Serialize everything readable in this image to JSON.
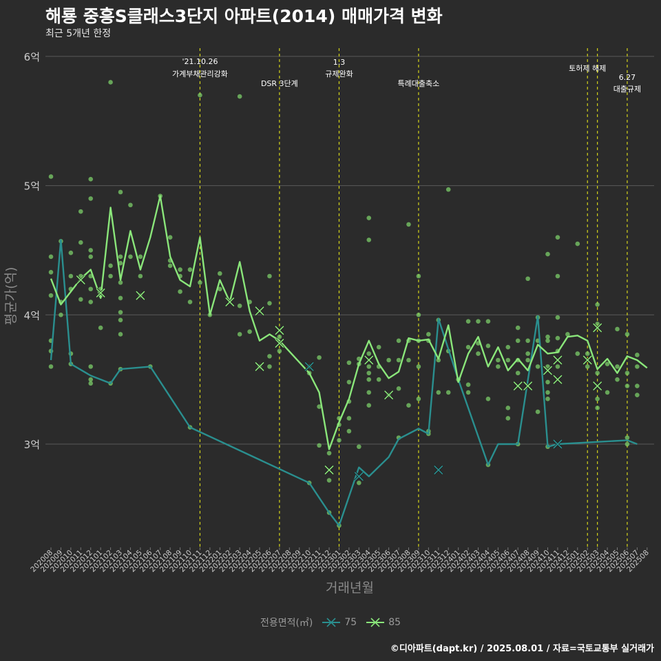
{
  "header": {
    "title": "해룡 중흥S클래스3단지 아파트(2014) 매매가격 변화",
    "subtitle": "최근 5개년 한정"
  },
  "footer": {
    "credit": "©디아파트(dapt.kr) / 2025.08.01 / 자료=국토교통부 실거래가"
  },
  "legend": {
    "title": "전용면적(㎡)",
    "items": [
      {
        "label": "75",
        "color": "#2a8f8f"
      },
      {
        "label": "85",
        "color": "#8ae67a"
      }
    ]
  },
  "colors": {
    "background": "#2b2b2b",
    "grid": "#5a5a5a",
    "event_line": "#d4d41a",
    "series_75": "#2a8f8f",
    "series_85": "#8ae67a",
    "points": "#7ccf6a",
    "axis_text": "#cccccc"
  },
  "chart_data": {
    "type": "line",
    "xlabel": "거래년월",
    "ylabel": "평균가(억)",
    "ylim": [
      2.25,
      6.1
    ],
    "yticks": [
      3,
      4,
      5,
      6
    ],
    "ytick_labels": [
      "3억",
      "4억",
      "5억",
      "6억"
    ],
    "grid": true,
    "legend_position": "bottom",
    "months": [
      "202008",
      "202009",
      "202010",
      "202011",
      "202012",
      "202101",
      "202102",
      "202103",
      "202104",
      "202105",
      "202106",
      "202107",
      "202108",
      "202109",
      "202110",
      "202111",
      "202112",
      "202201",
      "202202",
      "202203",
      "202204",
      "202205",
      "202206",
      "202207",
      "202208",
      "202209",
      "202210",
      "202211",
      "202212",
      "202301",
      "202302",
      "202303",
      "202304",
      "202305",
      "202306",
      "202307",
      "202308",
      "202309",
      "202310",
      "202311",
      "202312",
      "202401",
      "202402",
      "202403",
      "202404",
      "202405",
      "202406",
      "202407",
      "202408",
      "202409",
      "202410",
      "202411",
      "202412",
      "202501",
      "202502",
      "202503",
      "202504",
      "202505",
      "202506",
      "202507",
      "202508"
    ],
    "events": [
      {
        "month": "202111",
        "label": "'21.10.26\n가계부채관리강화"
      },
      {
        "month": "202207",
        "label": "DSR 3단계"
      },
      {
        "month": "202301",
        "label": "1.3\n규제완화"
      },
      {
        "month": "202309",
        "label": "특례대출축소"
      },
      {
        "month": "202502",
        "label": "토허제 해제"
      },
      {
        "month": "202503",
        "label": ""
      },
      {
        "month": "202506",
        "label": "6.27\n대출규제"
      }
    ],
    "series": [
      {
        "name": "75",
        "points": [
          [
            "202008",
            3.65
          ],
          [
            "202009",
            4.58
          ],
          [
            "202010",
            3.62
          ],
          [
            "202012",
            3.53
          ],
          [
            "202102",
            3.47
          ],
          [
            "202103",
            3.58
          ],
          [
            "202106",
            3.6
          ],
          [
            "202110",
            3.13
          ],
          [
            "202210",
            2.7
          ],
          [
            "202212",
            2.47
          ],
          [
            "202301",
            2.37
          ],
          [
            "202303",
            2.82
          ],
          [
            "202304",
            2.75
          ],
          [
            "202306",
            2.9
          ],
          [
            "202307",
            3.04
          ],
          [
            "202309",
            3.12
          ],
          [
            "202310",
            3.08
          ],
          [
            "202311",
            3.97
          ],
          [
            "202401",
            3.5
          ],
          [
            "202404",
            2.84
          ],
          [
            "202405",
            3.0
          ],
          [
            "202407",
            3.0
          ],
          [
            "202409",
            3.99
          ],
          [
            "202410",
            2.98
          ],
          [
            "202411",
            3.0
          ],
          [
            "202506",
            3.03
          ],
          [
            "202507",
            3.0
          ]
        ]
      },
      {
        "name": "85",
        "points": [
          [
            "202008",
            4.28
          ],
          [
            "202009",
            4.08
          ],
          [
            "202010",
            4.18
          ],
          [
            "202011",
            4.28
          ],
          [
            "202012",
            4.35
          ],
          [
            "202101",
            4.13
          ],
          [
            "202102",
            4.83
          ],
          [
            "202103",
            4.27
          ],
          [
            "202104",
            4.65
          ],
          [
            "202105",
            4.35
          ],
          [
            "202106",
            4.6
          ],
          [
            "202107",
            4.92
          ],
          [
            "202108",
            4.45
          ],
          [
            "202109",
            4.27
          ],
          [
            "202110",
            4.22
          ],
          [
            "202111",
            4.6
          ],
          [
            "202112",
            4.0
          ],
          [
            "202201",
            4.27
          ],
          [
            "202202",
            4.1
          ],
          [
            "202203",
            4.41
          ],
          [
            "202204",
            4.03
          ],
          [
            "202205",
            3.8
          ],
          [
            "202206",
            3.85
          ],
          [
            "202207",
            3.8
          ],
          [
            "202210",
            3.55
          ],
          [
            "202211",
            3.4
          ],
          [
            "202212",
            2.96
          ],
          [
            "202301",
            3.17
          ],
          [
            "202302",
            3.35
          ],
          [
            "202303",
            3.62
          ],
          [
            "202304",
            3.8
          ],
          [
            "202305",
            3.62
          ],
          [
            "202306",
            3.51
          ],
          [
            "202307",
            3.56
          ],
          [
            "202308",
            3.82
          ],
          [
            "202309",
            3.8
          ],
          [
            "202310",
            3.81
          ],
          [
            "202311",
            3.66
          ],
          [
            "202312",
            3.92
          ],
          [
            "202401",
            3.48
          ],
          [
            "202402",
            3.7
          ],
          [
            "202403",
            3.83
          ],
          [
            "202404",
            3.6
          ],
          [
            "202405",
            3.75
          ],
          [
            "202406",
            3.57
          ],
          [
            "202407",
            3.66
          ],
          [
            "202408",
            3.57
          ],
          [
            "202409",
            3.77
          ],
          [
            "202410",
            3.7
          ],
          [
            "202411",
            3.71
          ],
          [
            "202412",
            3.83
          ],
          [
            "202501",
            3.84
          ],
          [
            "202502",
            3.8
          ],
          [
            "202503",
            3.58
          ],
          [
            "202504",
            3.66
          ],
          [
            "202505",
            3.55
          ],
          [
            "202506",
            3.68
          ],
          [
            "202507",
            3.65
          ],
          [
            "202508",
            3.59
          ]
        ]
      }
    ],
    "transactions": [
      [
        "202008",
        5.07
      ],
      [
        "202008",
        4.45
      ],
      [
        "202008",
        4.33
      ],
      [
        "202008",
        4.15
      ],
      [
        "202008",
        3.8
      ],
      [
        "202008",
        3.72
      ],
      [
        "202008",
        3.6
      ],
      [
        "202009",
        4.57
      ],
      [
        "202009",
        4.1
      ],
      [
        "202009",
        4.0
      ],
      [
        "202010",
        4.48
      ],
      [
        "202010",
        4.3
      ],
      [
        "202010",
        4.2
      ],
      [
        "202010",
        3.7
      ],
      [
        "202010",
        3.62
      ],
      [
        "202011",
        4.8
      ],
      [
        "202011",
        4.56
      ],
      [
        "202011",
        4.3
      ],
      [
        "202011",
        4.12
      ],
      [
        "202012",
        5.05
      ],
      [
        "202012",
        4.9
      ],
      [
        "202012",
        4.5
      ],
      [
        "202012",
        4.45
      ],
      [
        "202012",
        4.3
      ],
      [
        "202012",
        4.2
      ],
      [
        "202012",
        4.1
      ],
      [
        "202012",
        3.6
      ],
      [
        "202012",
        3.5
      ],
      [
        "202012",
        3.47
      ],
      [
        "202101",
        4.2
      ],
      [
        "202101",
        4.15
      ],
      [
        "202101",
        3.9
      ],
      [
        "202102",
        5.8
      ],
      [
        "202102",
        4.38
      ],
      [
        "202102",
        4.3
      ],
      [
        "202102",
        3.47
      ],
      [
        "202103",
        4.95
      ],
      [
        "202103",
        4.45
      ],
      [
        "202103",
        4.4
      ],
      [
        "202103",
        4.25
      ],
      [
        "202103",
        4.13
      ],
      [
        "202103",
        4.02
      ],
      [
        "202103",
        3.96
      ],
      [
        "202103",
        3.85
      ],
      [
        "202103",
        3.58
      ],
      [
        "202104",
        4.85
      ],
      [
        "202104",
        4.45
      ],
      [
        "202105",
        4.45
      ],
      [
        "202105",
        4.3
      ],
      [
        "202105",
        4.15
      ],
      [
        "202106",
        3.6
      ],
      [
        "202107",
        4.92
      ],
      [
        "202108",
        4.6
      ],
      [
        "202108",
        4.42
      ],
      [
        "202108",
        4.38
      ],
      [
        "202109",
        4.35
      ],
      [
        "202109",
        4.3
      ],
      [
        "202109",
        4.18
      ],
      [
        "202110",
        4.35
      ],
      [
        "202110",
        4.1
      ],
      [
        "202110",
        3.13
      ],
      [
        "202111",
        5.7
      ],
      [
        "202111",
        4.25
      ],
      [
        "202112",
        4.0
      ],
      [
        "202201",
        4.32
      ],
      [
        "202201",
        4.2
      ],
      [
        "202203",
        5.69
      ],
      [
        "202203",
        4.07
      ],
      [
        "202203",
        3.85
      ],
      [
        "202204",
        4.1
      ],
      [
        "202204",
        3.87
      ],
      [
        "202205",
        3.6
      ],
      [
        "202206",
        4.3
      ],
      [
        "202206",
        4.09
      ],
      [
        "202206",
        3.68
      ],
      [
        "202206",
        3.6
      ],
      [
        "202207",
        3.83
      ],
      [
        "202207",
        3.72
      ],
      [
        "202210",
        3.6
      ],
      [
        "202210",
        3.55
      ],
      [
        "202210",
        2.7
      ],
      [
        "202211",
        3.67
      ],
      [
        "202211",
        3.29
      ],
      [
        "202211",
        2.99
      ],
      [
        "202212",
        2.93
      ],
      [
        "202212",
        2.72
      ],
      [
        "202212",
        2.47
      ],
      [
        "202301",
        3.2
      ],
      [
        "202301",
        3.15
      ],
      [
        "202301",
        3.03
      ],
      [
        "202301",
        2.37
      ],
      [
        "202302",
        3.63
      ],
      [
        "202302",
        3.48
      ],
      [
        "202302",
        3.33
      ],
      [
        "202302",
        3.2
      ],
      [
        "202302",
        3.1
      ],
      [
        "202303",
        3.66
      ],
      [
        "202303",
        3.62
      ],
      [
        "202303",
        2.98
      ],
      [
        "202303",
        2.7
      ],
      [
        "202304",
        4.75
      ],
      [
        "202304",
        4.58
      ],
      [
        "202304",
        3.7
      ],
      [
        "202304",
        3.6
      ],
      [
        "202304",
        3.55
      ],
      [
        "202304",
        3.5
      ],
      [
        "202304",
        3.4
      ],
      [
        "202304",
        3.3
      ],
      [
        "202305",
        3.75
      ],
      [
        "202305",
        3.6
      ],
      [
        "202305",
        3.5
      ],
      [
        "202306",
        3.65
      ],
      [
        "202306",
        3.38
      ],
      [
        "202307",
        3.8
      ],
      [
        "202307",
        3.65
      ],
      [
        "202307",
        3.43
      ],
      [
        "202307",
        3.05
      ],
      [
        "202308",
        4.7
      ],
      [
        "202308",
        3.8
      ],
      [
        "202308",
        3.65
      ],
      [
        "202308",
        3.3
      ],
      [
        "202309",
        4.3
      ],
      [
        "202309",
        4.0
      ],
      [
        "202309",
        3.8
      ],
      [
        "202309",
        3.6
      ],
      [
        "202309",
        3.35
      ],
      [
        "202310",
        3.85
      ],
      [
        "202310",
        3.8
      ],
      [
        "202310",
        3.1
      ],
      [
        "202310",
        3.08
      ],
      [
        "202311",
        3.96
      ],
      [
        "202311",
        3.65
      ],
      [
        "202311",
        3.4
      ],
      [
        "202312",
        4.97
      ],
      [
        "202312",
        3.72
      ],
      [
        "202312",
        3.4
      ],
      [
        "202401",
        3.5
      ],
      [
        "202402",
        3.95
      ],
      [
        "202402",
        3.75
      ],
      [
        "202402",
        3.46
      ],
      [
        "202402",
        3.4
      ],
      [
        "202403",
        3.95
      ],
      [
        "202403",
        3.78
      ],
      [
        "202403",
        3.7
      ],
      [
        "202404",
        3.95
      ],
      [
        "202404",
        3.76
      ],
      [
        "202404",
        3.35
      ],
      [
        "202404",
        2.84
      ],
      [
        "202405",
        3.65
      ],
      [
        "202405",
        3.6
      ],
      [
        "202406",
        3.75
      ],
      [
        "202406",
        3.65
      ],
      [
        "202406",
        3.28
      ],
      [
        "202406",
        3.2
      ],
      [
        "202407",
        3.9
      ],
      [
        "202407",
        3.8
      ],
      [
        "202407",
        3.65
      ],
      [
        "202407",
        3.55
      ],
      [
        "202407",
        3.0
      ],
      [
        "202408",
        4.28
      ],
      [
        "202408",
        3.8
      ],
      [
        "202408",
        3.7
      ],
      [
        "202408",
        3.65
      ],
      [
        "202409",
        3.98
      ],
      [
        "202409",
        3.8
      ],
      [
        "202409",
        3.6
      ],
      [
        "202409",
        3.25
      ],
      [
        "202410",
        4.47
      ],
      [
        "202410",
        3.83
      ],
      [
        "202410",
        3.8
      ],
      [
        "202410",
        3.6
      ],
      [
        "202410",
        3.48
      ],
      [
        "202410",
        3.4
      ],
      [
        "202410",
        3.35
      ],
      [
        "202410",
        2.98
      ],
      [
        "202411",
        4.6
      ],
      [
        "202411",
        4.3
      ],
      [
        "202411",
        3.98
      ],
      [
        "202411",
        3.82
      ],
      [
        "202411",
        3.72
      ],
      [
        "202411",
        3.6
      ],
      [
        "202412",
        3.85
      ],
      [
        "202501",
        4.55
      ],
      [
        "202501",
        3.7
      ],
      [
        "202502",
        3.7
      ],
      [
        "202502",
        3.6
      ],
      [
        "202503",
        4.08
      ],
      [
        "202503",
        3.93
      ],
      [
        "202503",
        3.55
      ],
      [
        "202503",
        3.35
      ],
      [
        "202503",
        3.28
      ],
      [
        "202504",
        3.62
      ],
      [
        "202504",
        3.4
      ],
      [
        "202505",
        3.89
      ],
      [
        "202505",
        3.6
      ],
      [
        "202505",
        3.5
      ],
      [
        "202506",
        3.85
      ],
      [
        "202506",
        3.55
      ],
      [
        "202506",
        3.45
      ],
      [
        "202506",
        3.05
      ],
      [
        "202506",
        3.0
      ],
      [
        "202507",
        3.69
      ],
      [
        "202507",
        3.6
      ],
      [
        "202507",
        3.45
      ],
      [
        "202507",
        3.38
      ]
    ],
    "x_markers": [
      {
        "series": "85",
        "month": "202011",
        "value": 4.27
      },
      {
        "series": "85",
        "month": "202101",
        "value": 4.17
      },
      {
        "series": "85",
        "month": "202105",
        "value": 4.15
      },
      {
        "series": "85",
        "month": "202202",
        "value": 4.1
      },
      {
        "series": "85",
        "month": "202205",
        "value": 4.03
      },
      {
        "series": "85",
        "month": "202205",
        "value": 3.6
      },
      {
        "series": "85",
        "month": "202207",
        "value": 3.88
      },
      {
        "series": "85",
        "month": "202207",
        "value": 3.78
      },
      {
        "series": "75",
        "month": "202210",
        "value": 3.6
      },
      {
        "series": "85",
        "month": "202212",
        "value": 2.8
      },
      {
        "series": "75",
        "month": "202303",
        "value": 2.75
      },
      {
        "series": "85",
        "month": "202304",
        "value": 3.65
      },
      {
        "series": "85",
        "month": "202306",
        "value": 3.38
      },
      {
        "series": "75",
        "month": "202311",
        "value": 2.8
      },
      {
        "series": "85",
        "month": "202407",
        "value": 3.45
      },
      {
        "series": "85",
        "month": "202408",
        "value": 3.45
      },
      {
        "series": "85",
        "month": "202410",
        "value": 3.57
      },
      {
        "series": "85",
        "month": "202411",
        "value": 3.65
      },
      {
        "series": "85",
        "month": "202411",
        "value": 3.5
      },
      {
        "series": "75",
        "month": "202411",
        "value": 3.0
      },
      {
        "series": "85",
        "month": "202502",
        "value": 3.65
      },
      {
        "series": "85",
        "month": "202503",
        "value": 3.9
      },
      {
        "series": "85",
        "month": "202503",
        "value": 3.45
      }
    ]
  }
}
